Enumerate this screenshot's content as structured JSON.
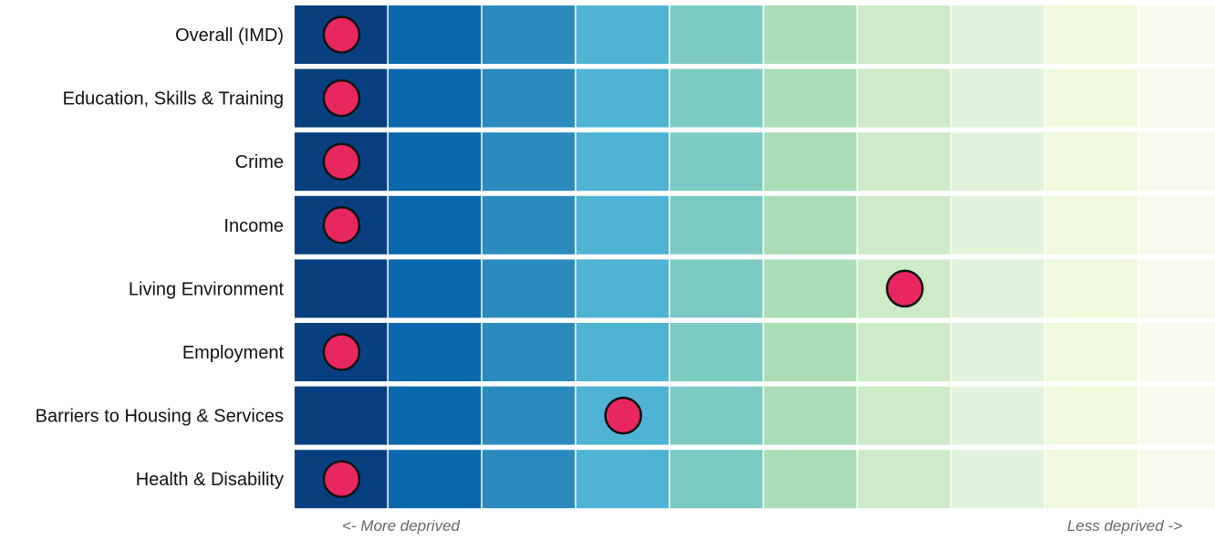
{
  "chart_data": {
    "type": "heatmap",
    "title": "",
    "xlabel_left": "<- More deprived",
    "xlabel_right": "Less deprived ->",
    "deciles": [
      1,
      2,
      3,
      4,
      5,
      6,
      7,
      8,
      9,
      10
    ],
    "decile_colors": [
      "#08407f",
      "#0b68ad",
      "#2b8bbf",
      "#4fb3d3",
      "#7bcbc3",
      "#a9ddb7",
      "#cdebc6",
      "#e1f3dd",
      "#f0f9dc",
      "#f7fbef"
    ],
    "marker_color": "#e8265f",
    "rows": [
      {
        "label": "Overall (IMD)",
        "decile": 1
      },
      {
        "label": "Education, Skills & Training",
        "decile": 1
      },
      {
        "label": "Crime",
        "decile": 1
      },
      {
        "label": "Income",
        "decile": 1
      },
      {
        "label": "Living Environment",
        "decile": 7
      },
      {
        "label": "Employment",
        "decile": 1
      },
      {
        "label": "Barriers to Housing & Services",
        "decile": 4
      },
      {
        "label": "Health & Disability",
        "decile": 1
      }
    ]
  }
}
